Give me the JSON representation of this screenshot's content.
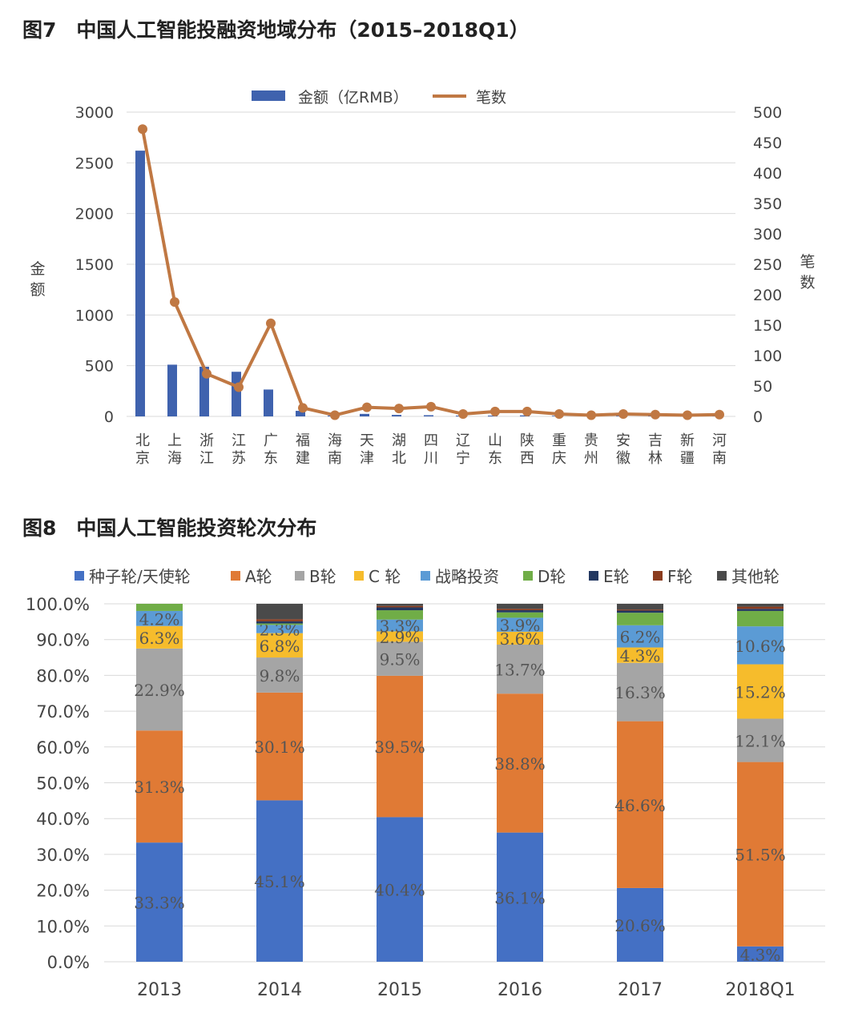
{
  "figure7": {
    "title": "图7　中国人工智能投融资地域分布（2015–2018Q1）"
  },
  "figure8": {
    "title": "图8　中国人工智能投资轮次分布"
  },
  "colors": {
    "blue": "#3f62ae",
    "orange": "#c07843",
    "stk_seed": "#4470c4",
    "stk_a": "#e07a35",
    "stk_b": "#a5a5a5",
    "stk_c": "#f6bc2c",
    "stk_strategic": "#5b9bd5",
    "stk_d": "#70ad47",
    "stk_e": "#233861",
    "stk_f": "#8b3c1e",
    "stk_other": "#4a4a4a",
    "grid": "#d9d9d9"
  },
  "chart_data": [
    {
      "type": "bar+line",
      "title": "图7　中国人工智能投融资地域分布（2015–2018Q1）",
      "categories": [
        "北京",
        "上海",
        "浙江",
        "江苏",
        "广东",
        "福建",
        "海南",
        "天津",
        "湖北",
        "四川",
        "辽宁",
        "山东",
        "陕西",
        "重庆",
        "贵州",
        "安徽",
        "吉林",
        "新疆",
        "河南"
      ],
      "series": [
        {
          "name": "金额（亿RMB）",
          "type": "bar",
          "axis": "left",
          "values": [
            2620,
            510,
            490,
            440,
            265,
            55,
            8,
            25,
            15,
            12,
            8,
            8,
            10,
            6,
            5,
            6,
            5,
            3,
            5
          ]
        },
        {
          "name": "笔数",
          "type": "line",
          "axis": "right",
          "values": [
            472,
            188,
            70,
            48,
            153,
            14,
            2,
            15,
            13,
            16,
            4,
            8,
            8,
            4,
            2,
            4,
            3,
            2,
            3
          ]
        }
      ],
      "ylabel": "金额",
      "y2label": "笔数",
      "ylim": [
        0,
        3000
      ],
      "y2lim": [
        0,
        500
      ],
      "yticks": [
        "0",
        "500",
        "1000",
        "1500",
        "2000",
        "2500",
        "3000"
      ],
      "y2ticks": [
        "0",
        "50",
        "100",
        "150",
        "200",
        "250",
        "300",
        "350",
        "400",
        "450",
        "500"
      ],
      "grid": true,
      "legend": "top"
    },
    {
      "type": "stacked-bar",
      "title": "图8　中国人工智能投资轮次分布",
      "categories": [
        "2013",
        "2014",
        "2015",
        "2016",
        "2017",
        "2018Q1"
      ],
      "series": [
        {
          "name": "种子轮/天使轮",
          "values": [
            33.3,
            45.1,
            40.4,
            36.1,
            20.6,
            4.3
          ],
          "labels": [
            "33.3%",
            "45.1%",
            "40.4%",
            "36.1%",
            "20.6%",
            "4.3%"
          ]
        },
        {
          "name": "A轮",
          "values": [
            31.3,
            30.1,
            39.5,
            38.8,
            46.6,
            51.5
          ],
          "labels": [
            "31.3%",
            "30.1%",
            "39.5%",
            "38.8%",
            "46.6%",
            "51.5%"
          ]
        },
        {
          "name": "B轮",
          "values": [
            22.9,
            9.8,
            9.5,
            13.7,
            16.3,
            12.1
          ],
          "labels": [
            "22.9%",
            "9.8%",
            "9.5%",
            "13.7%",
            "16.3%",
            "12.1%"
          ]
        },
        {
          "name": "C 轮",
          "values": [
            6.3,
            6.8,
            2.9,
            3.6,
            4.3,
            15.2
          ],
          "labels": [
            "6.3%",
            "6.8%",
            "2.9%",
            "3.6%",
            "4.3%",
            "15.2%"
          ]
        },
        {
          "name": "战略投资",
          "values": [
            4.2,
            2.3,
            3.3,
            3.9,
            6.2,
            10.6
          ],
          "labels": [
            "4.2%",
            "2.3%",
            "3.3%",
            "3.9%",
            "6.2%",
            "10.6%"
          ]
        },
        {
          "name": "D轮",
          "values": [
            2.0,
            0.4,
            2.6,
            1.5,
            3.5,
            4.3
          ],
          "labels": [
            "",
            "",
            "",
            "",
            "",
            ""
          ]
        },
        {
          "name": "E轮",
          "values": [
            0,
            0.6,
            0.8,
            0.6,
            0.6,
            0.6
          ],
          "labels": [
            "",
            "",
            "",
            "",
            "",
            ""
          ]
        },
        {
          "name": "F轮",
          "values": [
            0,
            0.6,
            0.4,
            0.4,
            0.3,
            0.6
          ],
          "labels": [
            "",
            "",
            "",
            "",
            "",
            ""
          ]
        },
        {
          "name": "其他轮",
          "values": [
            0,
            4.3,
            0.6,
            1.4,
            1.6,
            0.8
          ],
          "labels": [
            "",
            "",
            "",
            "",
            "",
            ""
          ]
        }
      ],
      "ylim": [
        0,
        100
      ],
      "yticks": [
        "0.0%",
        "10.0%",
        "20.0%",
        "30.0%",
        "40.0%",
        "50.0%",
        "60.0%",
        "70.0%",
        "80.0%",
        "90.0%",
        "100.0%"
      ],
      "grid": true,
      "legend": "top"
    }
  ]
}
